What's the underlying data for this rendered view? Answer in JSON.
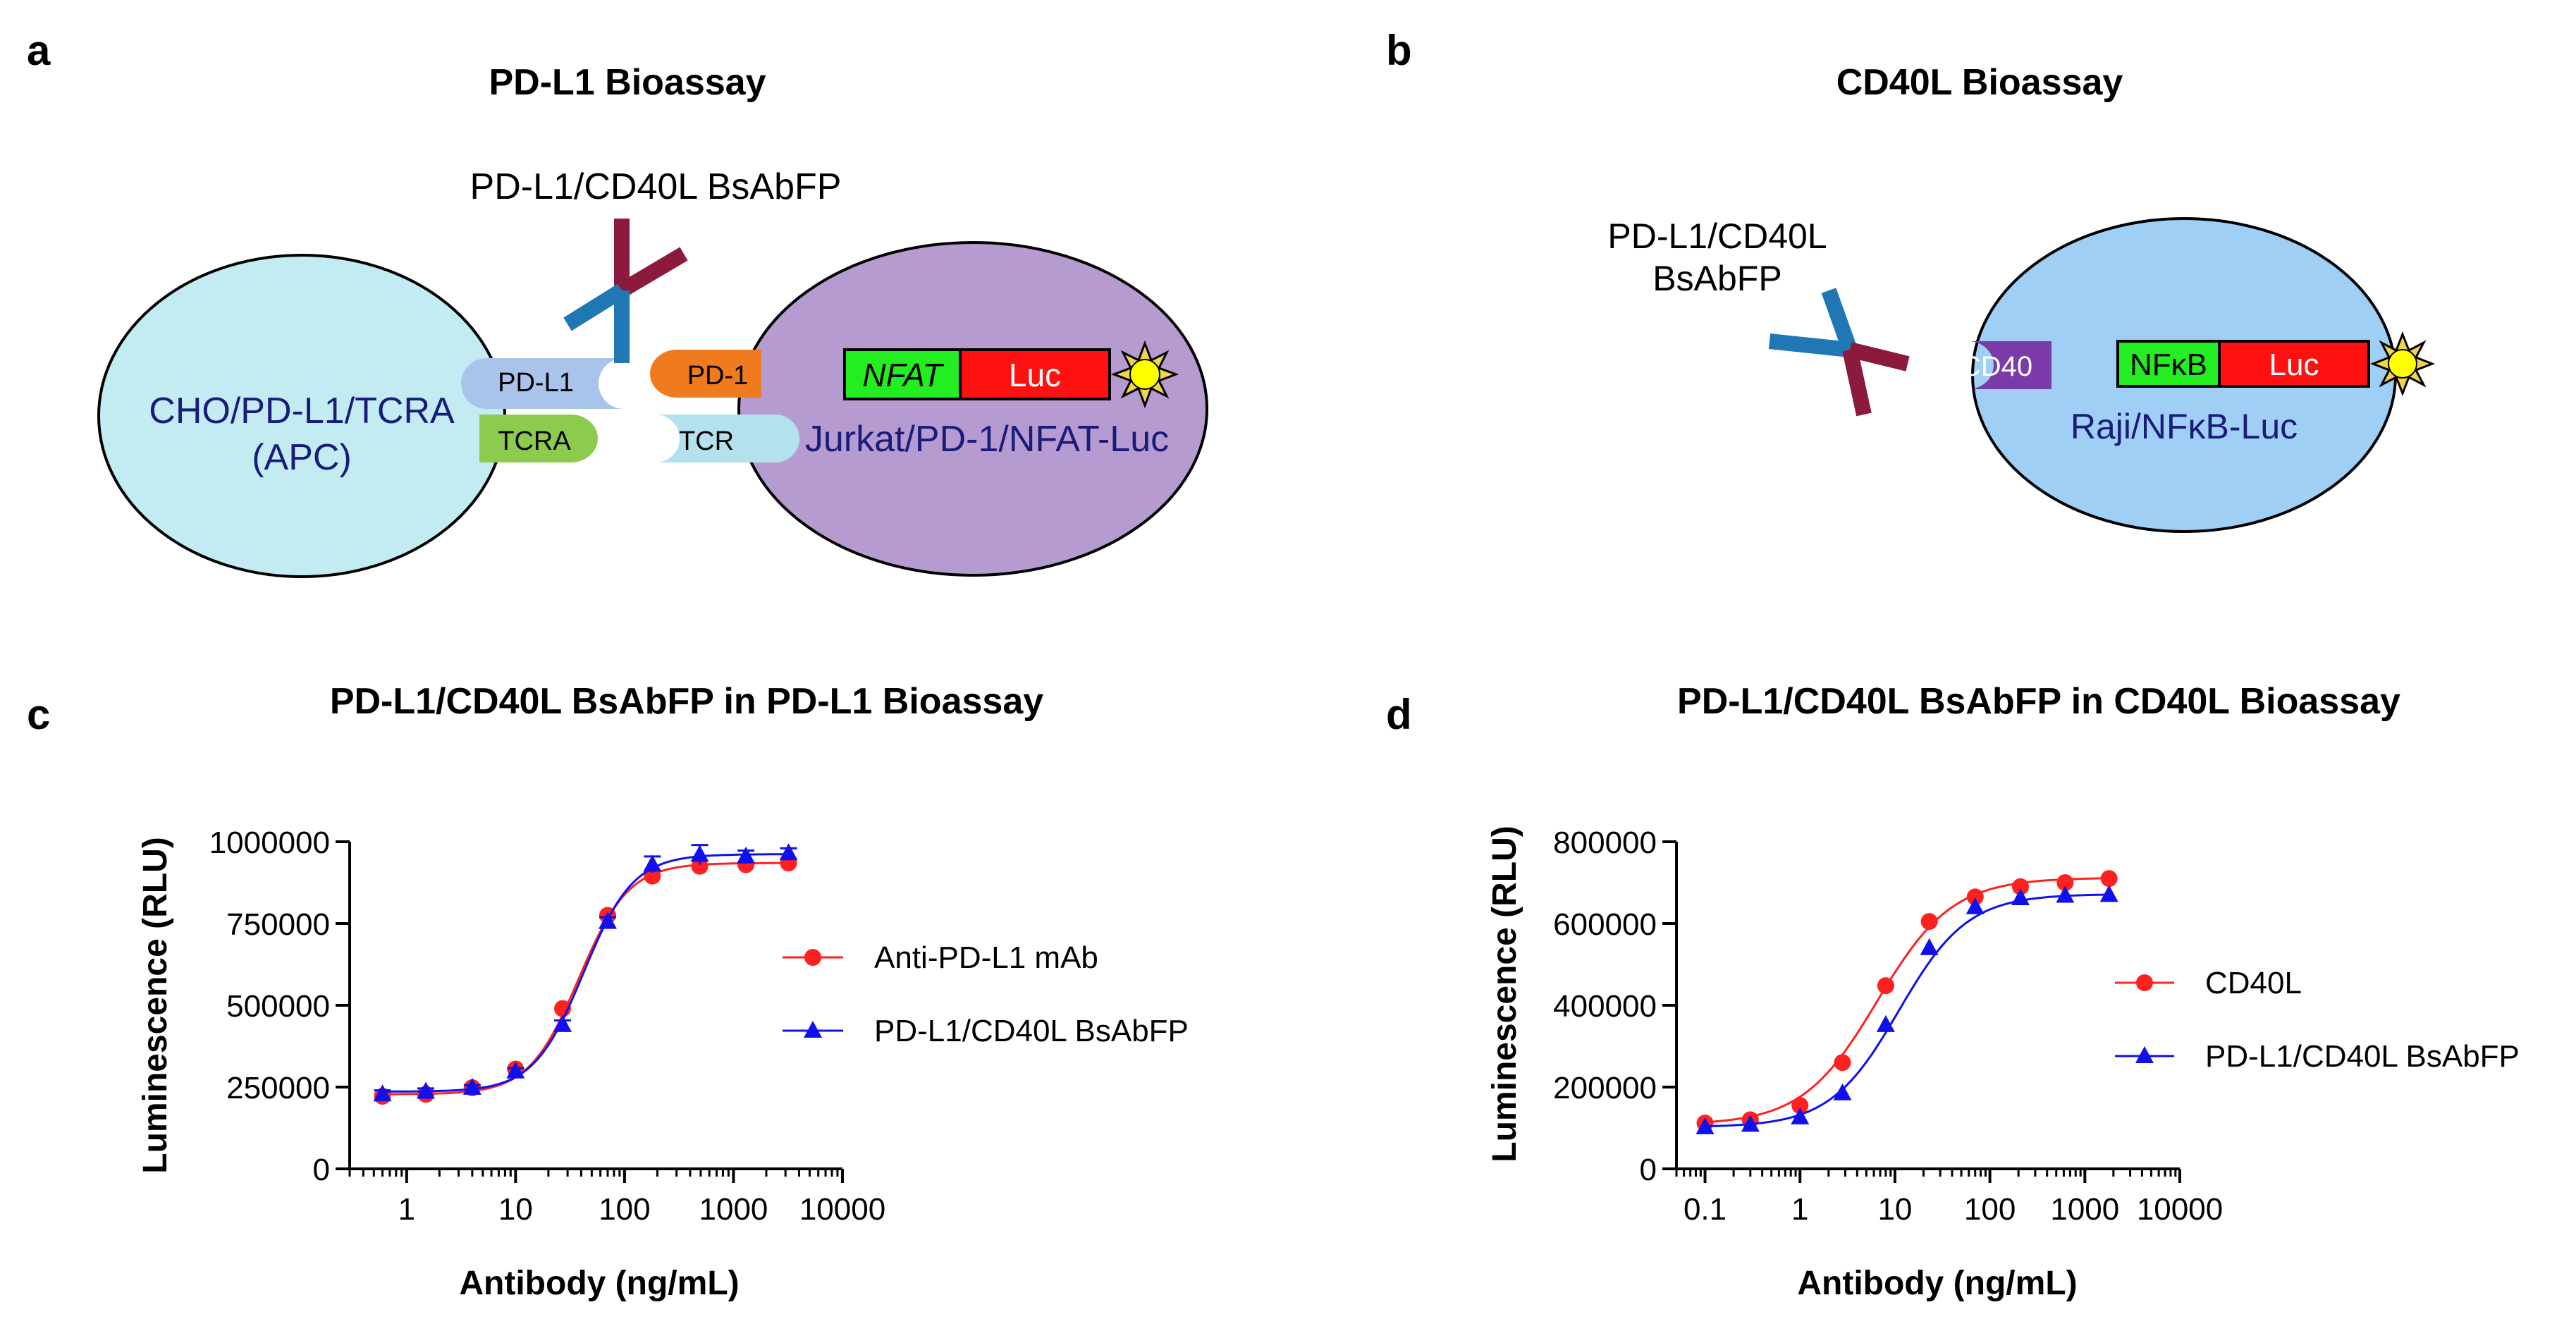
{
  "panels": {
    "a": {
      "letter": "a",
      "title": "PD-L1 Bioassay",
      "antibody_label": "PD-L1/CD40L BsAbFP",
      "apc_cell": {
        "line1": "CHO/PD-L1/TCRA",
        "line2": "(APC)",
        "color": "#c2ecf2"
      },
      "effector_cell": {
        "label": "Jurkat/PD-1/NFAT-Luc",
        "color": "#b69bd0"
      },
      "receptors": {
        "pdl1": "PD-L1",
        "tcra": "TCRA",
        "pd1": "PD-1",
        "tcr": "TCR"
      },
      "reporter": {
        "promoter": "NFAT",
        "gene": "Luc"
      }
    },
    "b": {
      "letter": "b",
      "title": "CD40L Bioassay",
      "antibody_label_line1": "PD-L1/CD40L",
      "antibody_label_line2": "BsAbFP",
      "cell": {
        "label": "Raji/NFκB-Luc",
        "color": "#9fcff5"
      },
      "receptor": "CD40",
      "reporter": {
        "promoter": "NFκB",
        "gene": "Luc"
      }
    },
    "c": {
      "letter": "c"
    },
    "d": {
      "letter": "d"
    }
  },
  "colors": {
    "antibody_blue": "#1f78b4",
    "antibody_red": "#8b1a3c",
    "reporter_green": "#22ee22",
    "reporter_red": "#ff1111",
    "series_red": "#ff2020",
    "series_blue": "#1010ee"
  },
  "chart_data": [
    {
      "type": "scatter",
      "title": "PD-L1/CD40L BsAbFP in PD-L1 Bioassay",
      "xlabel": "Antibody (ng/mL)",
      "ylabel": "Luminescence (RLU)",
      "xscale": "log",
      "xlim": [
        0.3,
        10000
      ],
      "ylim": [
        0,
        1000000
      ],
      "xticks": [
        1,
        10,
        100,
        1000,
        10000
      ],
      "xtick_labels": [
        "1",
        "10",
        "100",
        "1000",
        "10000"
      ],
      "yticks": [
        0,
        250000,
        500000,
        750000,
        1000000
      ],
      "ytick_labels": [
        "0",
        "250000",
        "500000",
        "750000",
        "1000000"
      ],
      "legend_position": "right",
      "series": [
        {
          "name": "Anti-PD-L1 mAb",
          "marker": "circle",
          "color": "#ff2020",
          "x": [
            0.6,
            1.5,
            4,
            10,
            27,
            70,
            180,
            490,
            1300,
            3200
          ],
          "y": [
            222000,
            228000,
            248000,
            305000,
            490000,
            775000,
            895000,
            925000,
            930000,
            935000
          ],
          "fit": {
            "bottom": 228000,
            "top": 935000,
            "ec50": 38,
            "hill": 1.9
          }
        },
        {
          "name": "PD-L1/CD40L BsAbFP",
          "marker": "triangle",
          "color": "#1010ee",
          "x": [
            0.6,
            1.5,
            4,
            10,
            27,
            70,
            180,
            490,
            1300,
            3200
          ],
          "y": [
            228000,
            236000,
            248000,
            298000,
            440000,
            755000,
            930000,
            960000,
            955000,
            965000
          ],
          "error": [
            12000,
            10000,
            8000,
            10000,
            14000,
            14000,
            25000,
            30000,
            18000,
            15000
          ],
          "fit": {
            "bottom": 236000,
            "top": 962000,
            "ec50": 42,
            "hill": 1.9
          }
        }
      ]
    },
    {
      "type": "scatter",
      "title": "PD-L1/CD40L BsAbFP in CD40L Bioassay",
      "xlabel": "Antibody (ng/mL)",
      "ylabel": "Luminescence (RLU)",
      "xscale": "log",
      "xlim": [
        0.05,
        10000
      ],
      "ylim": [
        0,
        800000
      ],
      "xticks": [
        0.1,
        1,
        10,
        100,
        1000,
        10000
      ],
      "xtick_labels": [
        "0.1",
        "1",
        "10",
        "100",
        "1000",
        "10000"
      ],
      "yticks": [
        0,
        200000,
        400000,
        600000,
        800000
      ],
      "ytick_labels": [
        "0",
        "200000",
        "400000",
        "600000",
        "800000"
      ],
      "legend_position": "right",
      "series": [
        {
          "name": "CD40L",
          "marker": "circle",
          "color": "#ff2020",
          "x": [
            0.1,
            0.3,
            1,
            2.8,
            8,
            23,
            70,
            210,
            620,
            1800
          ],
          "y": [
            112000,
            120000,
            155000,
            260000,
            448000,
            605000,
            665000,
            690000,
            700000,
            710000
          ],
          "fit": {
            "bottom": 108000,
            "top": 712000,
            "ec50": 6.5,
            "hill": 1.1
          }
        },
        {
          "name": "PD-L1/CD40L BsAbFP",
          "marker": "triangle",
          "color": "#1010ee",
          "x": [
            0.1,
            0.3,
            1,
            2.8,
            8,
            23,
            70,
            210,
            620,
            1800
          ],
          "y": [
            102000,
            108000,
            126000,
            185000,
            352000,
            540000,
            640000,
            662000,
            668000,
            670000
          ],
          "fit": {
            "bottom": 102000,
            "top": 672000,
            "ec50": 11,
            "hill": 1.2
          }
        }
      ]
    }
  ]
}
